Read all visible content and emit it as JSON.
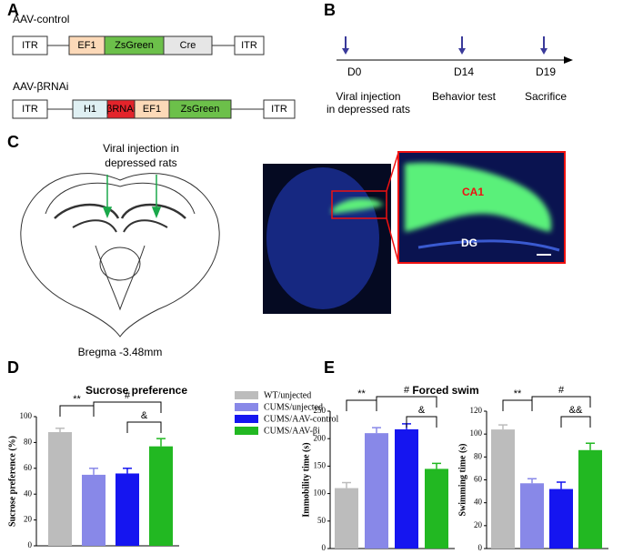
{
  "panel_labels": [
    "A",
    "B",
    "C",
    "D",
    "E"
  ],
  "constructs": [
    {
      "name": "AAV-control",
      "elements": [
        "ITR",
        "EF1",
        "ZsGreen",
        "Cre",
        "ITR"
      ]
    },
    {
      "name": "AAV-βRNAi",
      "elements": [
        "ITR",
        "H1",
        "βRNAi",
        "EF1",
        "ZsGreen",
        "ITR"
      ]
    }
  ],
  "timeline": [
    {
      "day": "D0",
      "event": [
        "Viral injection",
        "in depressed rats"
      ]
    },
    {
      "day": "D14",
      "event": [
        "Behavior test"
      ]
    },
    {
      "day": "D19",
      "event": [
        "Sacrifice"
      ]
    }
  ],
  "section": {
    "injection_label": [
      "Viral injection in",
      "depressed rats"
    ],
    "bregma": "Bregma -3.48mm",
    "ca1": "CA1",
    "dg": "DG"
  },
  "chart_data": [
    {
      "type": "bar",
      "title": "Sucrose preference",
      "y_label": "Sucrose preference (%)",
      "categories": [
        null,
        null,
        null,
        null
      ],
      "values": [
        88,
        55,
        56,
        77
      ],
      "errors": [
        3,
        5,
        4,
        6
      ],
      "colors": [
        "#bcbcbc",
        "#8888e8",
        "#1515f0",
        "#22b822"
      ],
      "legend": [
        "WT/unjected",
        "CUMS/unjected",
        "CUMS/AAV-control",
        "CUMS/AAV-βi"
      ],
      "ylim": [
        0,
        100
      ],
      "yticks": [
        0,
        20,
        40,
        60,
        80,
        100
      ],
      "annotations": [
        "**",
        "#",
        "&"
      ]
    },
    {
      "type": "bar",
      "title": "Forced swim",
      "y_label": "Immobility time (s)",
      "categories": [
        null,
        null,
        null,
        null
      ],
      "values": [
        110,
        210,
        217,
        145
      ],
      "errors": [
        10,
        10,
        10,
        10
      ],
      "colors": [
        "#bcbcbc",
        "#8888e8",
        "#1515f0",
        "#22b822"
      ],
      "ylim": [
        0,
        250
      ],
      "yticks": [
        0,
        50,
        100,
        150,
        200,
        250
      ],
      "annotations": [
        "**",
        "#",
        "&"
      ]
    },
    {
      "type": "bar",
      "y_label": "Swimming time (s)",
      "categories": [
        null,
        null,
        null,
        null
      ],
      "values": [
        104,
        57,
        52,
        86
      ],
      "errors": [
        4,
        4,
        6,
        6
      ],
      "colors": [
        "#bcbcbc",
        "#8888e8",
        "#1515f0",
        "#22b822"
      ],
      "ylim": [
        0,
        120
      ],
      "yticks": [
        0,
        20,
        40,
        60,
        80,
        100,
        120
      ],
      "annotations": [
        "**",
        "#",
        "&&"
      ]
    }
  ]
}
